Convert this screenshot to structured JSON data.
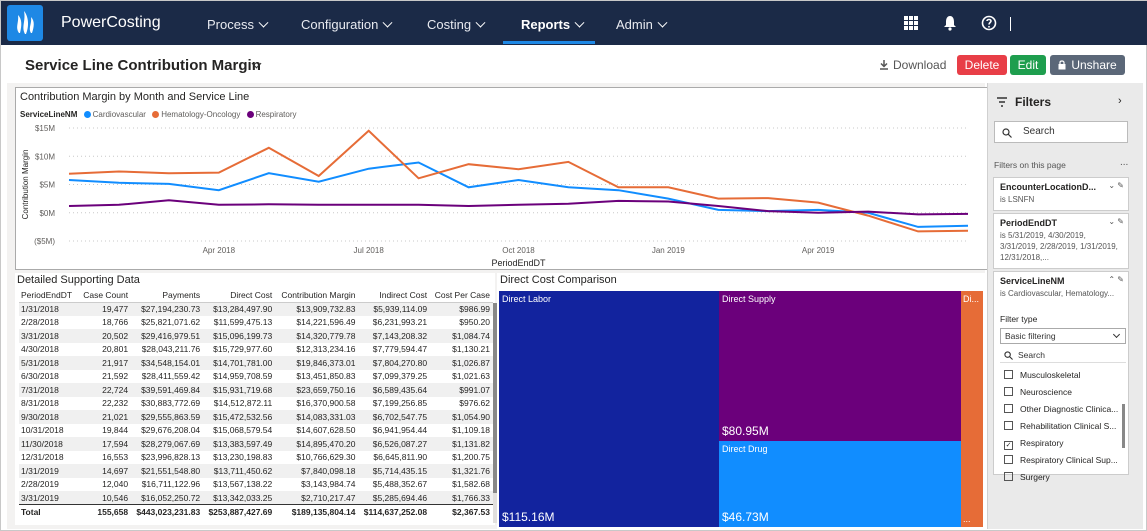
{
  "topnav": {
    "brand": "PowerCosting",
    "items": [
      {
        "label": "Process"
      },
      {
        "label": "Configuration"
      },
      {
        "label": "Costing"
      },
      {
        "label": "Reports"
      },
      {
        "label": "Admin"
      }
    ],
    "icons": [
      "apps-grid-icon",
      "bell-icon",
      "help-icon"
    ]
  },
  "header": {
    "title": "Service Line Contribution Margin",
    "download_label": "Download",
    "delete_label": "Delete",
    "edit_label": "Edit",
    "unshare_label": "Unshare"
  },
  "colors": {
    "nav_bg": "#1b2a47",
    "accent": "#1e88e5",
    "cardiovascular": "#118dff",
    "hematology_oncology": "#e66c37",
    "respiratory": "#6b007b",
    "delete": "#e83e47",
    "edit": "#1e9e4e",
    "unshare": "#5b6778"
  },
  "line_chart": {
    "title": "Contribution Margin by Month and Service Line",
    "legend_title": "ServiceLineNM",
    "ylabel": "Contribution Margin",
    "xlabel": "PeriodEndDT",
    "yticks": [
      "$15M",
      "$10M",
      "$5M",
      "$0M",
      "($5M)"
    ],
    "xticks": [
      "Apr 2018",
      "Jul 2018",
      "Oct 2018",
      "Jan 2019",
      "Apr 2019"
    ]
  },
  "chart_data": [
    {
      "type": "line",
      "title": "Contribution Margin by Month and Service Line",
      "xlabel": "PeriodEndDT",
      "ylabel": "Contribution Margin",
      "x": [
        "2018-01",
        "2018-02",
        "2018-03",
        "2018-04",
        "2018-05",
        "2018-06",
        "2018-07",
        "2018-08",
        "2018-09",
        "2018-10",
        "2018-11",
        "2018-12",
        "2019-01",
        "2019-02",
        "2019-03",
        "2019-04",
        "2019-05",
        "2019-06",
        "2019-07"
      ],
      "ylim": [
        -5,
        15
      ],
      "yunit": "$M",
      "grid": true,
      "legend": "top-left",
      "series": [
        {
          "name": "Cardiovascular",
          "values": [
            5.8,
            5.3,
            5.1,
            4.0,
            7.0,
            5.5,
            7.8,
            8.9,
            4.5,
            5.8,
            4.5,
            4.0,
            2.5,
            0.5,
            0.3,
            0.5,
            0.0,
            -2.5,
            -2.3
          ]
        },
        {
          "name": "Hematology-Oncology",
          "values": [
            6.9,
            7.3,
            7.0,
            7.1,
            11.5,
            6.5,
            14.5,
            6.1,
            8.6,
            7.7,
            9.0,
            4.5,
            4.5,
            2.5,
            2.6,
            1.8,
            -0.5,
            -3.3,
            -3.2
          ]
        },
        {
          "name": "Respiratory",
          "values": [
            1.2,
            1.4,
            2.2,
            1.4,
            1.5,
            1.4,
            1.4,
            1.4,
            1.2,
            1.4,
            1.6,
            2.1,
            2.0,
            1.2,
            0.3,
            0.0,
            0.2,
            -0.3,
            -0.2
          ]
        }
      ]
    },
    {
      "type": "table",
      "title": "Detailed Supporting Data",
      "columns": [
        "PeriodEndDT",
        "Case Count",
        "Payments",
        "Direct Cost",
        "Contribution Margin",
        "Indirect Cost",
        "Cost Per Case"
      ],
      "rows": [
        [
          "1/31/2018",
          "19,477",
          "$27,194,230.73",
          "$13,284,497.90",
          "$13,909,732.83",
          "$5,939,114.09",
          "$986.99"
        ],
        [
          "2/28/2018",
          "18,766",
          "$25,821,071.62",
          "$11,599,475.13",
          "$14,221,596.49",
          "$6,231,993.21",
          "$950.20"
        ],
        [
          "3/31/2018",
          "20,502",
          "$29,416,979.51",
          "$15,096,199.73",
          "$14,320,779.78",
          "$7,143,208.32",
          "$1,084.74"
        ],
        [
          "4/30/2018",
          "20,801",
          "$28,043,211.76",
          "$15,729,977.60",
          "$12,313,234.16",
          "$7,779,594.47",
          "$1,130.21"
        ],
        [
          "5/31/2018",
          "21,917",
          "$34,548,154.01",
          "$14,701,781.00",
          "$19,846,373.01",
          "$7,804,270.80",
          "$1,026.87"
        ],
        [
          "6/30/2018",
          "21,592",
          "$28,411,559.42",
          "$14,959,708.59",
          "$13,451,850.83",
          "$7,099,379.25",
          "$1,021.63"
        ],
        [
          "7/31/2018",
          "22,724",
          "$39,591,469.84",
          "$15,931,719.68",
          "$23,659,750.16",
          "$6,589,435.64",
          "$991.07"
        ],
        [
          "8/31/2018",
          "22,232",
          "$30,883,772.69",
          "$14,512,872.11",
          "$16,370,900.58",
          "$7,199,256.85",
          "$976.62"
        ],
        [
          "9/30/2018",
          "21,021",
          "$29,555,863.59",
          "$15,472,532.56",
          "$14,083,331.03",
          "$6,702,547.75",
          "$1,054.90"
        ],
        [
          "10/31/2018",
          "19,844",
          "$29,676,208.04",
          "$15,068,579.54",
          "$14,607,628.50",
          "$6,941,954.44",
          "$1,109.18"
        ],
        [
          "11/30/2018",
          "17,594",
          "$28,279,067.69",
          "$13,383,597.49",
          "$14,895,470.20",
          "$6,526,087.27",
          "$1,131.82"
        ],
        [
          "12/31/2018",
          "16,553",
          "$23,996,828.13",
          "$13,230,198.83",
          "$10,766,629.30",
          "$6,645,811.90",
          "$1,200.75"
        ],
        [
          "1/31/2019",
          "14,697",
          "$21,551,548.80",
          "$13,711,450.62",
          "$7,840,098.18",
          "$5,714,435.15",
          "$1,321.76"
        ],
        [
          "2/28/2019",
          "12,040",
          "$16,711,122.96",
          "$13,567,138.22",
          "$3,143,984.74",
          "$5,488,352.67",
          "$1,582.68"
        ],
        [
          "3/31/2019",
          "10,546",
          "$16,052,250.72",
          "$13,342,033.25",
          "$2,710,217.47",
          "$5,285,694.46",
          "$1,766.33"
        ]
      ],
      "total": [
        "Total",
        "155,658",
        "$443,023,231.83",
        "$253,887,427.69",
        "$189,135,804.14",
        "$114,637,252.08",
        "$2,367.53"
      ]
    },
    {
      "type": "treemap",
      "title": "Direct Cost Comparison",
      "items": [
        {
          "label": "Direct Labor",
          "value": "$115.16M"
        },
        {
          "label": "Direct Supply",
          "value": "$80.95M"
        },
        {
          "label": "Direct Drug",
          "value": "$46.73M"
        },
        {
          "label": "Di...",
          "value": "..."
        }
      ]
    }
  ],
  "table": {
    "title": "Detailed Supporting Data",
    "headers": [
      "PeriodEndDT",
      "Case Count",
      "Payments",
      "Direct Cost",
      "Contribution Margin",
      "Indirect Cost",
      "Cost Per Case"
    ]
  },
  "treemap": {
    "title": "Direct Cost Comparison",
    "labor_label": "Direct Labor",
    "labor_value": "$115.16M",
    "supply_label": "Direct Supply",
    "supply_value": "$80.95M",
    "drug_label": "Direct Drug",
    "drug_value": "$46.73M",
    "other_label": "Di...",
    "other_value": "..."
  },
  "filters": {
    "title": "Filters",
    "search_placeholder": "Search",
    "on_page_label": "Filters on this page",
    "more": "...",
    "card1": {
      "name": "EncounterLocationD...",
      "value": "is LSNFN"
    },
    "card2": {
      "name": "PeriodEndDT",
      "value": "is 5/31/2019, 4/30/2019, 3/31/2019, 2/28/2019, 1/31/2019, 12/31/2018,..."
    },
    "card3": {
      "name": "ServiceLineNM",
      "value": "is Cardiovascular, Hematology...",
      "filter_type_label": "Filter type",
      "filter_type_value": "Basic filtering",
      "list_search": "Search",
      "items": [
        {
          "label": "Musculoskeletal",
          "checked": false
        },
        {
          "label": "Neuroscience",
          "checked": false
        },
        {
          "label": "Other Diagnostic Clinica...",
          "checked": false
        },
        {
          "label": "Rehabilitation Clinical S...",
          "checked": false
        },
        {
          "label": "Respiratory",
          "checked": true
        },
        {
          "label": "Respiratory Clinical Sup...",
          "checked": false
        },
        {
          "label": "Surgery",
          "checked": false
        }
      ]
    }
  }
}
